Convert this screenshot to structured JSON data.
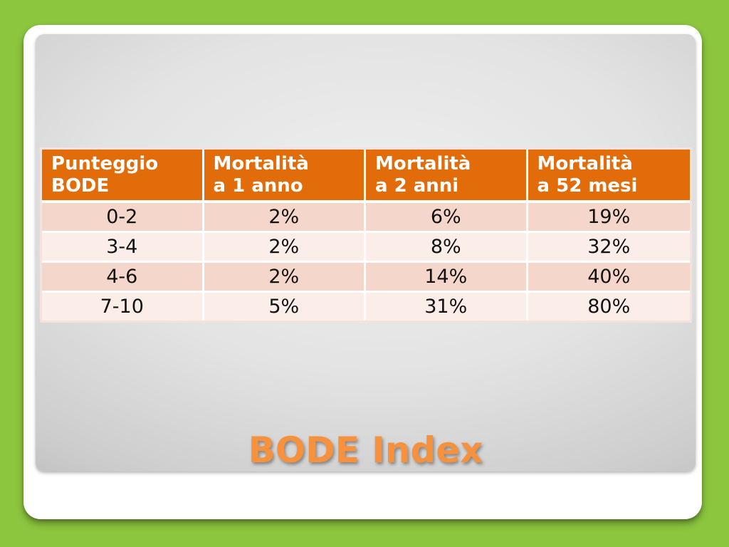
{
  "background": {
    "frame_green": "#8CC63F",
    "card_white": "#FFFFFF",
    "slide_gradient_center": "#EFEFEF",
    "slide_gradient_edge": "#9E9E9E"
  },
  "slide": {
    "title": "BODE Index",
    "title_color": "#F6913E"
  },
  "table": {
    "header_bg": "#E36C0A",
    "header_text_color": "#FFFFFF",
    "row_band_dark": "#F5D6CB",
    "row_band_light": "#FBEDE8",
    "headers": [
      {
        "line1": "Punteggio",
        "line2": "BODE"
      },
      {
        "line1": "Mortalità",
        "line2": "a 1 anno"
      },
      {
        "line1": "Mortalità",
        "line2": "a 2 anni"
      },
      {
        "line1": "Mortalità",
        "line2": "a 52 mesi"
      }
    ],
    "rows": [
      [
        "0-2",
        "2%",
        "6%",
        "19%"
      ],
      [
        "3-4",
        "2%",
        "8%",
        "32%"
      ],
      [
        "4-6",
        "2%",
        "14%",
        "40%"
      ],
      [
        "7-10",
        "5%",
        "31%",
        "80%"
      ]
    ]
  }
}
